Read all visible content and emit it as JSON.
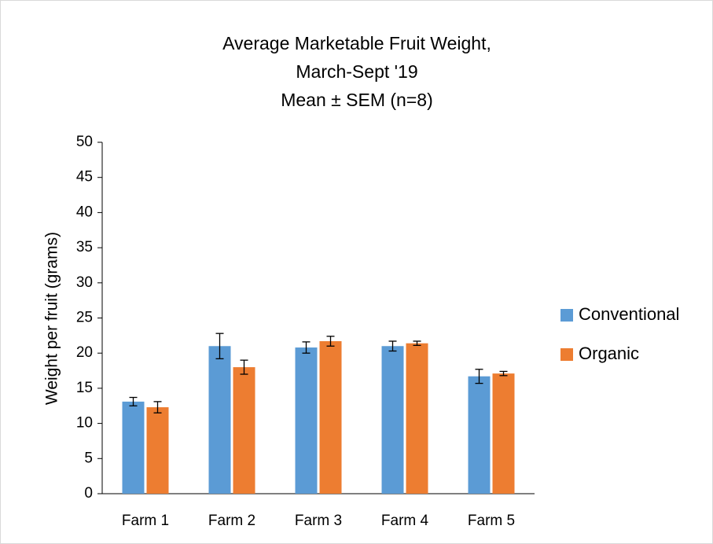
{
  "chart_data": {
    "type": "bar",
    "title": [
      "Average Marketable Fruit Weight,",
      "March-Sept '19",
      "Mean ±  SEM (n=8)"
    ],
    "y_label": "Weight per fruit (grams)",
    "categories": [
      "Farm 1",
      "Farm 2",
      "Farm 3",
      "Farm 4",
      "Farm 5"
    ],
    "series": [
      {
        "name": "Conventional",
        "color": "#5b9bd5",
        "values": [
          13.1,
          21.0,
          20.8,
          21.0,
          16.7
        ],
        "errors": [
          0.6,
          1.8,
          0.8,
          0.7,
          1.0
        ]
      },
      {
        "name": "Organic",
        "color": "#ed7d31",
        "values": [
          12.3,
          18.0,
          21.7,
          21.4,
          17.1
        ],
        "errors": [
          0.8,
          1.0,
          0.7,
          0.3,
          0.3
        ]
      }
    ],
    "ylim": [
      0,
      50
    ],
    "yticks": [
      0,
      5,
      10,
      15,
      20,
      25,
      30,
      35,
      40,
      45,
      50
    ],
    "grid": false,
    "legend": "right"
  }
}
